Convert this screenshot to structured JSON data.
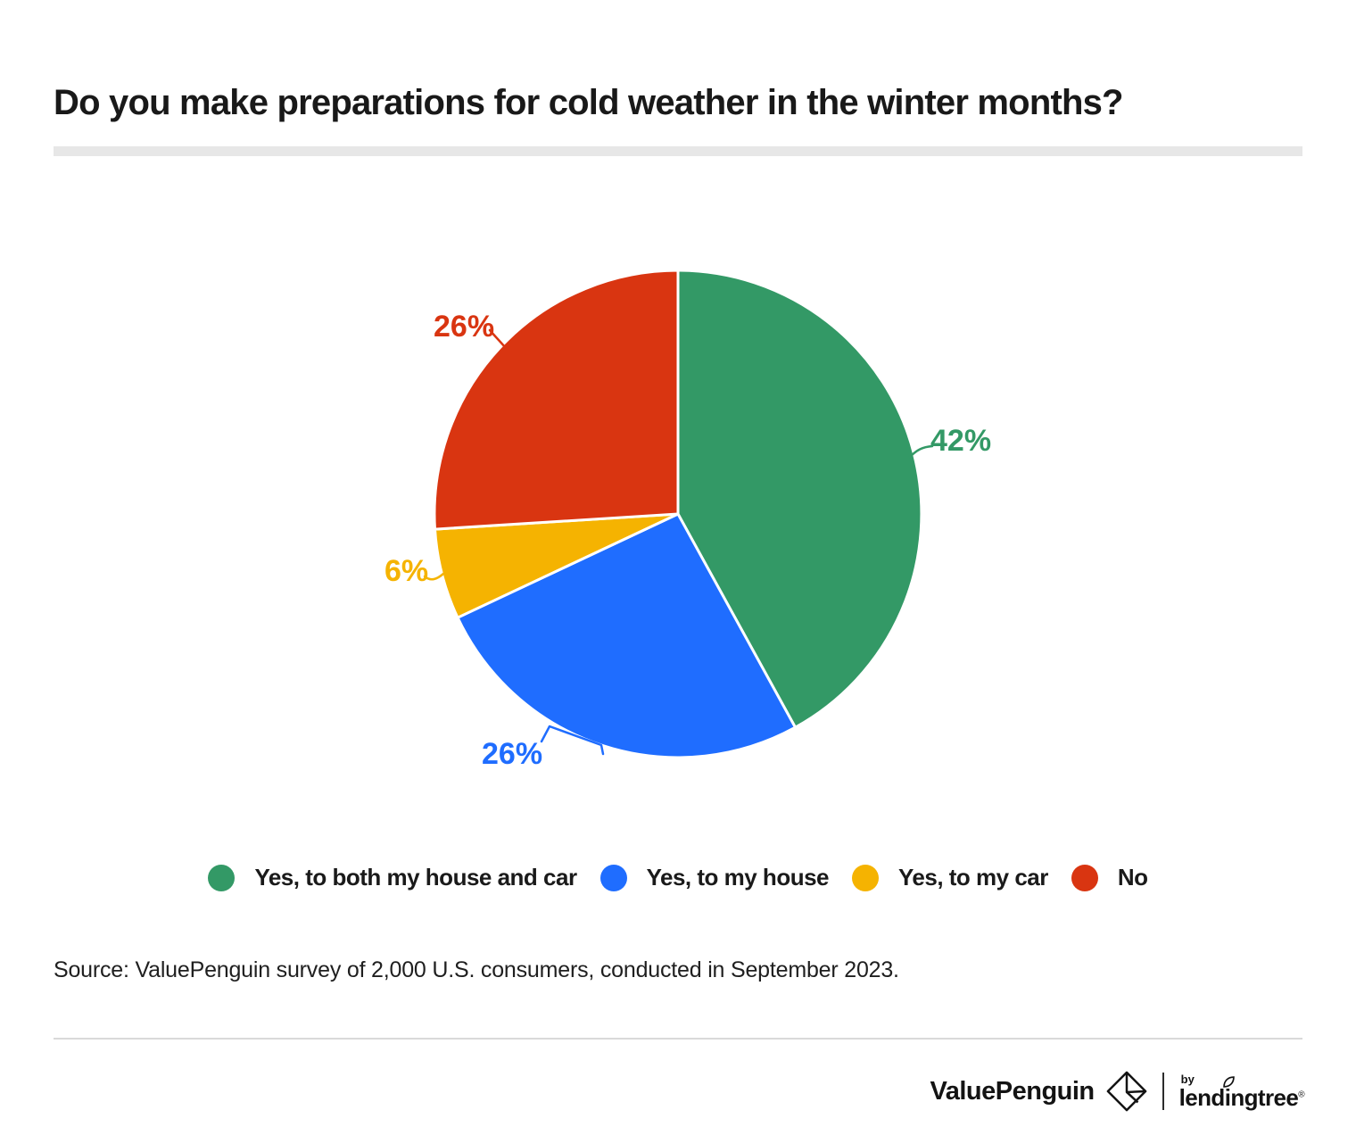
{
  "header": {
    "title": "Do you make preparations for cold weather in the winter months?"
  },
  "chart_data": {
    "type": "pie",
    "title": "Do you make preparations for cold weather in the winter months?",
    "value_suffix": "%",
    "start_angle": "top",
    "direction": "clockwise",
    "legend_position": "bottom",
    "series": [
      {
        "name": "Yes, to both my house and car",
        "value": 42,
        "color": "#339966"
      },
      {
        "name": "Yes, to my house",
        "value": 26,
        "color": "#1f6dff"
      },
      {
        "name": "Yes, to my car",
        "value": 6,
        "color": "#f5b301"
      },
      {
        "name": "No",
        "value": 26,
        "color": "#d93511"
      }
    ]
  },
  "source": {
    "text": "Source: ValuePenguin survey of 2,000 U.S. consumers, conducted in September 2023."
  },
  "footer": {
    "brand_primary": "ValuePenguin",
    "brand_by": "by",
    "brand_secondary_pre": "lend",
    "brand_secondary_i": "i",
    "brand_secondary_post": "ngtree",
    "registered_mark": "®",
    "icons": {
      "brand_mark": "valuepenguin-diamond-icon",
      "leaf": "leaf-icon"
    }
  },
  "colors": {
    "background": "#ffffff",
    "title_text": "#191919",
    "divider_bar": "#e7e7e7",
    "footer_rule": "#d9d9d9",
    "slice_border": "#ffffff"
  }
}
